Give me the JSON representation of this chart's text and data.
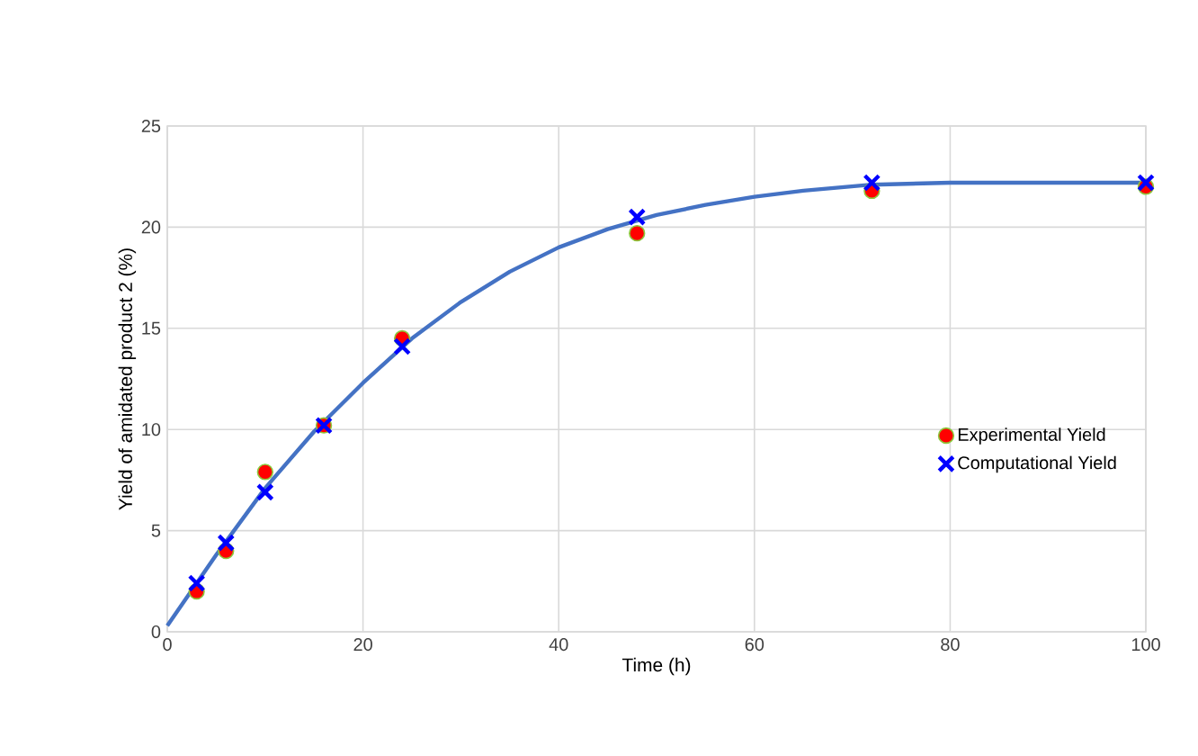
{
  "chart_data": {
    "type": "scatter",
    "xlabel": "Time (h)",
    "ylabel": "Yield of amidated product 2 (%)",
    "xlim": [
      0,
      100
    ],
    "ylim": [
      0,
      25
    ],
    "xticks": [
      0,
      20,
      40,
      60,
      80,
      100
    ],
    "yticks": [
      0,
      5,
      10,
      15,
      20,
      25
    ],
    "grid": true,
    "legend": "right",
    "series": [
      {
        "name": "Experimental Yield",
        "marker": "circle",
        "color": "#ff0000",
        "x": [
          3,
          6,
          10,
          16,
          24,
          48,
          72,
          100
        ],
        "values": [
          2.0,
          4.0,
          7.9,
          10.2,
          14.5,
          19.7,
          21.8,
          22.0
        ]
      },
      {
        "name": "Computational Yield",
        "marker": "cross",
        "color": "#0000ff",
        "x": [
          3,
          6,
          10,
          16,
          24,
          48,
          72,
          100
        ],
        "values": [
          2.4,
          4.4,
          6.9,
          10.2,
          14.1,
          20.5,
          22.2,
          22.2
        ]
      },
      {
        "type": "line",
        "marker": "none",
        "color": "#4472c4",
        "x": [
          0,
          5,
          10,
          15,
          20,
          25,
          30,
          35,
          40,
          45,
          50,
          55,
          60,
          65,
          72,
          80,
          90,
          100
        ],
        "values": [
          0.3,
          3.8,
          7.1,
          9.9,
          12.3,
          14.5,
          16.3,
          17.8,
          19.0,
          19.9,
          20.6,
          21.1,
          21.5,
          21.8,
          22.1,
          22.2,
          22.2,
          22.2
        ]
      }
    ]
  }
}
